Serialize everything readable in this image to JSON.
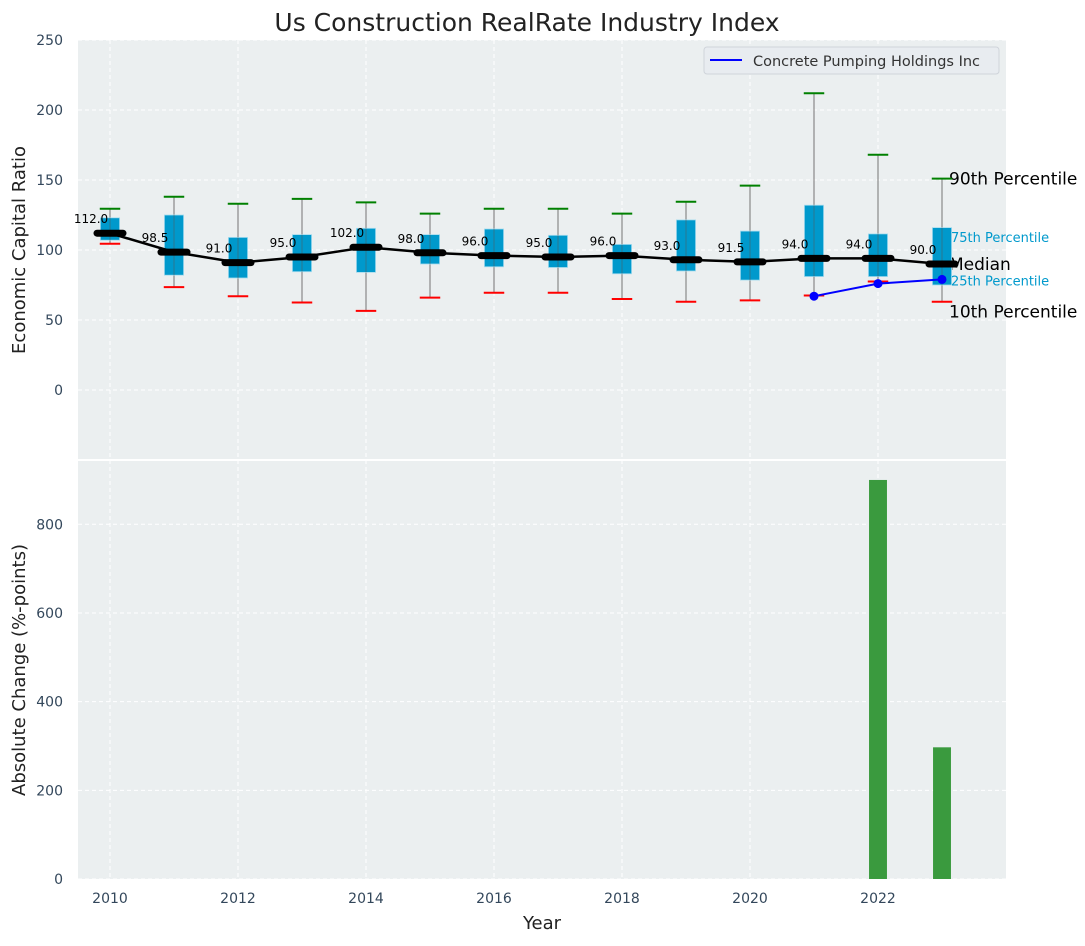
{
  "chart_data": [
    {
      "type": "box",
      "title": "Us Construction RealRate Industry Index",
      "ylabel": "Economic Capital Ratio",
      "xlabel": "",
      "ylim": [
        -50,
        250
      ],
      "xlim": [
        2009.5,
        2024
      ],
      "yticks": [
        0,
        50,
        100,
        150,
        200,
        250
      ],
      "grid": true,
      "legend_position": "top-right",
      "x": [
        2010,
        2011,
        2012,
        2013,
        2014,
        2015,
        2016,
        2017,
        2018,
        2019,
        2020,
        2021,
        2022,
        2023
      ],
      "p90": [
        129.5,
        138,
        133,
        136.5,
        134,
        126,
        129.5,
        129.5,
        126,
        134.5,
        146,
        212,
        168,
        151
      ],
      "q3": [
        123,
        125,
        109,
        111,
        115.5,
        111,
        115,
        110.5,
        104,
        121.5,
        113.5,
        132,
        111.5,
        116
      ],
      "median": [
        112.0,
        98.5,
        91.0,
        95.0,
        102.0,
        98.0,
        96.0,
        95.0,
        96.0,
        93.0,
        91.5,
        94.0,
        94.0,
        90.0
      ],
      "median_labels": [
        "112.0",
        "98.5",
        "91.0",
        "95.0",
        "102.0",
        "98.0",
        "96.0",
        "95.0",
        "96.0",
        "93.0",
        "91.5",
        "94.0",
        "94.0",
        "90.0"
      ],
      "q1": [
        107,
        82,
        80,
        84.5,
        84,
        90,
        88,
        87.5,
        83,
        85,
        78.5,
        81,
        81,
        75
      ],
      "p10": [
        104.5,
        73.5,
        67,
        62.5,
        56.5,
        66,
        69.5,
        69.5,
        65,
        63,
        64,
        67.5,
        77.5,
        63
      ],
      "series": [
        {
          "name": "Concrete Pumping Holdings Inc",
          "x": [
            2021,
            2022,
            2023
          ],
          "values": [
            67,
            76,
            79
          ],
          "color": "#0000ff"
        }
      ],
      "annotations": [
        {
          "text": "90th Percentile",
          "y": 151,
          "color": "#000000"
        },
        {
          "text": "75th Percentile",
          "y": 110,
          "color": "#0099cc"
        },
        {
          "text": "Median",
          "y": 90,
          "color": "#000000"
        },
        {
          "text": "25th Percentile",
          "y": 79,
          "color": "#0099cc"
        },
        {
          "text": "10th Percentile",
          "y": 56,
          "color": "#000000"
        }
      ],
      "colors": {
        "box": "#0099cc",
        "p90_cap": "#008000",
        "p10_cap": "#ff0000",
        "median": "#000000",
        "background": "#ebeff0"
      }
    },
    {
      "type": "bar",
      "xlabel": "Year",
      "ylabel": "Absolute Change (%-points)",
      "ylim": [
        0,
        945
      ],
      "xlim": [
        2009.5,
        2024
      ],
      "xticks": [
        2010,
        2012,
        2014,
        2016,
        2018,
        2020,
        2022
      ],
      "yticks": [
        0,
        200,
        400,
        600,
        800
      ],
      "categories": [
        2022,
        2023
      ],
      "values": [
        900,
        297
      ],
      "color": "#3a9a3e",
      "grid": true
    }
  ]
}
